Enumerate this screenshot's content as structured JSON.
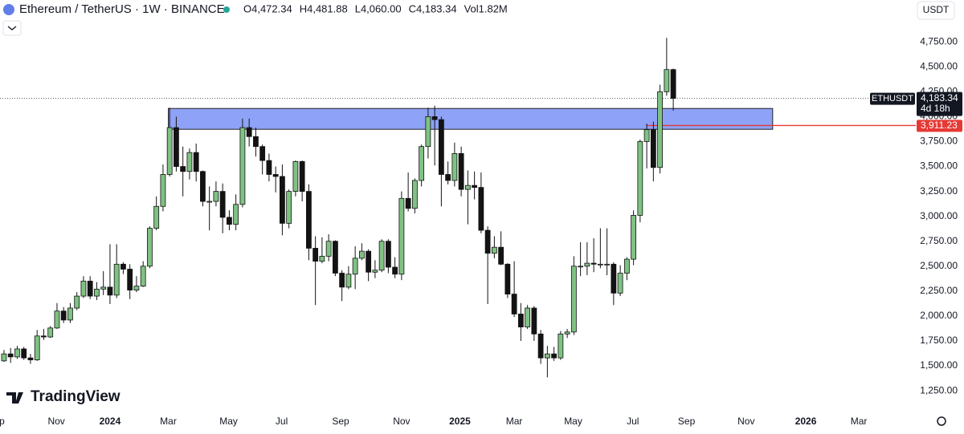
{
  "chart_data": {
    "type": "candlestick",
    "title": "Ethereum / TetherUS · 1W · BINANCE",
    "ohlc_labels": [
      "O4,472.34",
      "H4,481.88",
      "L4,060.00",
      "C4,183.34",
      "Vol1.82M"
    ],
    "currency_button": "USDT",
    "watermark": "TradingView",
    "categories": [
      null,
      null,
      null,
      null,
      null,
      null,
      null,
      null,
      null,
      null,
      null,
      null,
      null,
      null,
      null,
      null,
      null,
      null,
      null,
      null,
      null,
      null,
      null,
      null,
      null,
      null,
      null,
      null,
      null,
      null,
      null,
      null,
      null,
      null,
      null,
      null,
      null,
      null,
      null,
      null,
      null,
      null,
      null,
      null,
      null,
      null,
      null,
      null,
      null,
      null,
      null,
      null,
      null,
      null,
      null,
      null,
      null,
      null,
      null,
      null,
      null,
      null,
      null,
      null,
      null,
      null,
      null,
      null,
      null,
      null,
      null,
      null,
      null,
      null,
      null,
      null,
      null,
      null,
      null,
      null,
      null,
      null,
      null,
      null,
      null,
      null,
      null,
      null,
      null,
      null,
      null,
      null,
      null,
      null,
      null,
      null,
      null,
      null,
      null,
      null,
      null,
      null
    ],
    "open": [
      1550,
      1620,
      1590,
      1670,
      1580,
      1560,
      1800,
      1790,
      1880,
      2050,
      1960,
      2080,
      2200,
      2350,
      2200,
      2270,
      2290,
      2210,
      2520,
      2470,
      2260,
      2300,
      2500,
      2880,
      3100,
      3420,
      3890,
      3500,
      3450,
      3640,
      3450,
      3150,
      3150,
      3250,
      2990,
      2920,
      3120,
      3890,
      3800,
      3700,
      3560,
      3420,
      3400,
      2930,
      3250,
      3550,
      3250,
      2680,
      2550,
      2600,
      2750,
      2430,
      2290,
      2420,
      2580,
      2650,
      2440,
      2460,
      2750,
      2490,
      2420,
      3180,
      3080,
      3360,
      3700,
      4000,
      3970,
      3420,
      3360,
      3630,
      3270,
      3310,
      3290,
      2860,
      2630,
      2690,
      2520,
      2220,
      2020,
      1890,
      2080,
      1820,
      1580,
      1620,
      1580,
      1820,
      1840,
      2500,
      2500,
      2530,
      2520,
      2520,
      2520,
      2230,
      2430,
      2570,
      3010,
      3750,
      3870,
      3490,
      4250,
      4472.34
    ],
    "high": [
      1660,
      1680,
      1700,
      1690,
      1620,
      1860,
      1870,
      1900,
      2130,
      2090,
      2130,
      2240,
      2400,
      2400,
      2340,
      2450,
      2720,
      2720,
      2540,
      2520,
      2400,
      2550,
      2900,
      3200,
      3520,
      4090,
      4000,
      3700,
      3680,
      3730,
      3460,
      3300,
      3350,
      3330,
      3060,
      3220,
      3980,
      3980,
      3890,
      3720,
      3630,
      3500,
      3520,
      3270,
      3560,
      3560,
      3320,
      2800,
      2790,
      2820,
      2760,
      2460,
      2500,
      2700,
      2730,
      2670,
      2560,
      2770,
      2770,
      2590,
      3250,
      3440,
      3380,
      3720,
      4090,
      4110,
      4000,
      3550,
      3740,
      3700,
      3460,
      3450,
      3440,
      2900,
      2800,
      2850,
      2530,
      2550,
      2130,
      2110,
      2100,
      1860,
      1700,
      1690,
      1850,
      1870,
      2600,
      2740,
      2740,
      2780,
      2880,
      2880,
      2540,
      2510,
      2590,
      3060,
      3770,
      3930,
      3950,
      4320,
      4790,
      4481.88
    ],
    "low": [
      1540,
      1530,
      1570,
      1560,
      1520,
      1550,
      1760,
      1780,
      1870,
      1930,
      1930,
      2060,
      2180,
      2170,
      2160,
      2210,
      2120,
      2180,
      2420,
      2170,
      2240,
      2290,
      2480,
      2860,
      3050,
      3400,
      3450,
      3200,
      3370,
      3350,
      3100,
      2860,
      3100,
      2830,
      2860,
      2860,
      3090,
      3700,
      3600,
      3420,
      3350,
      3240,
      2810,
      2880,
      3200,
      3150,
      2560,
      2110,
      2530,
      2550,
      2400,
      2150,
      2270,
      2270,
      2560,
      2350,
      2380,
      2440,
      2430,
      2380,
      2360,
      3050,
      3030,
      3300,
      3580,
      3510,
      3100,
      3320,
      3300,
      3200,
      2920,
      3170,
      2830,
      2120,
      2580,
      2510,
      2180,
      1990,
      1750,
      1870,
      1750,
      1520,
      1385,
      1550,
      1560,
      1780,
      1810,
      2400,
      2410,
      2440,
      2480,
      2410,
      2110,
      2200,
      2360,
      2510,
      2940,
      3480,
      3350,
      3430,
      4210,
      4060
    ],
    "close": [
      1620,
      1590,
      1670,
      1580,
      1560,
      1800,
      1790,
      1880,
      2050,
      1960,
      2080,
      2200,
      2350,
      2200,
      2270,
      2290,
      2210,
      2520,
      2470,
      2260,
      2300,
      2500,
      2880,
      3100,
      3420,
      3890,
      3500,
      3450,
      3640,
      3450,
      3150,
      3150,
      3250,
      2990,
      2920,
      3120,
      3890,
      3800,
      3700,
      3560,
      3420,
      3400,
      2930,
      3250,
      3550,
      3250,
      2680,
      2550,
      2600,
      2750,
      2430,
      2290,
      2420,
      2580,
      2650,
      2440,
      2460,
      2750,
      2490,
      2420,
      3180,
      3080,
      3360,
      3700,
      4000,
      3970,
      3420,
      3360,
      3630,
      3270,
      3310,
      3290,
      2860,
      2630,
      2690,
      2520,
      2220,
      2020,
      1890,
      2080,
      1820,
      1580,
      1620,
      1580,
      1820,
      1840,
      2500,
      2500,
      2530,
      2520,
      2520,
      2520,
      2230,
      2430,
      2570,
      3010,
      3750,
      3870,
      3490,
      4250,
      4472.34,
      4183.34
    ],
    "up_color": "#7fc283",
    "down_color": "#131313",
    "xlim": [
      -0.6,
      137.6
    ],
    "xticks": [
      {
        "value": -0.3,
        "label": "p"
      },
      {
        "value": 7.9,
        "label": "Nov"
      },
      {
        "value": 16,
        "label": "2024"
      },
      {
        "value": 24.8,
        "label": "Mar"
      },
      {
        "value": 33.9,
        "label": "May"
      },
      {
        "value": 41.9,
        "label": "Jul"
      },
      {
        "value": 50.8,
        "label": "Sep"
      },
      {
        "value": 60,
        "label": "Nov"
      },
      {
        "value": 68.8,
        "label": "2025"
      },
      {
        "value": 77,
        "label": "Mar"
      },
      {
        "value": 85.9,
        "label": "May"
      },
      {
        "value": 94.9,
        "label": "Jul"
      },
      {
        "value": 103,
        "label": "Sep"
      },
      {
        "value": 112,
        "label": "Nov"
      },
      {
        "value": 121,
        "label": "2026"
      },
      {
        "value": 129,
        "label": "Mar"
      }
    ],
    "ylim": [
      1050,
      5170
    ],
    "yticks": [
      {
        "value": 1250,
        "label": "1,250.00"
      },
      {
        "value": 1500,
        "label": "1,500.00"
      },
      {
        "value": 1750,
        "label": "1,750.00"
      },
      {
        "value": 2000,
        "label": "2,000.00"
      },
      {
        "value": 2250,
        "label": "2,250.00"
      },
      {
        "value": 2500,
        "label": "2,500.00"
      },
      {
        "value": 2750,
        "label": "2,750.00"
      },
      {
        "value": 3000,
        "label": "3,000.00"
      },
      {
        "value": 3250,
        "label": "3,250.00"
      },
      {
        "value": 3500,
        "label": "3,500.00"
      },
      {
        "value": 3750,
        "label": "3,750.00"
      },
      {
        "value": 4000,
        "label": "4,000.00"
      },
      {
        "value": 4250,
        "label": "4,250.00"
      },
      {
        "value": 4500,
        "label": "4,500.00"
      },
      {
        "value": 4750,
        "label": "4,750.00"
      }
    ],
    "zone": {
      "x": [
        24.8,
        116
      ],
      "y": [
        3873,
        4082
      ],
      "color": "#8ea2f7"
    },
    "symbol_tag": "ETHUSDT",
    "last_price": {
      "value": 4183.34,
      "label": "4,183.34"
    },
    "countdown": "4d 18h",
    "level": {
      "value": 3911.23,
      "label": "3,911.23",
      "color": "#e53935"
    }
  }
}
